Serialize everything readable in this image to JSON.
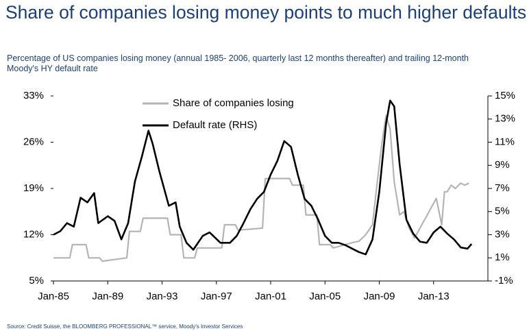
{
  "chart_data": {
    "type": "line",
    "title": "Share of companies losing money points to much higher defaults",
    "subtitle": "Percentage of US companies losing money (annual 1985- 2006, quarterly last 12 months thereafter) and trailing 12-month Moody's HY default rate",
    "source": "Source: Credit Suisse, the BLOOMBERG PROFESSIONAL™ service, Moody's Investor Services",
    "xlim": [
      1985,
      2017
    ],
    "xticks": [
      {
        "value": 1985,
        "label": "Jan-85"
      },
      {
        "value": 1989,
        "label": "Jan-89"
      },
      {
        "value": 1993,
        "label": "Jan-93"
      },
      {
        "value": 1997,
        "label": "Jan-97"
      },
      {
        "value": 2001,
        "label": "Jan-01"
      },
      {
        "value": 2005,
        "label": "Jan-05"
      },
      {
        "value": 2009,
        "label": "Jan-09"
      },
      {
        "value": 2013,
        "label": "Jan-13"
      }
    ],
    "ylim": [
      5,
      33
    ],
    "yticks": [
      {
        "value": 5,
        "label": "5%"
      },
      {
        "value": 12,
        "label": "12%"
      },
      {
        "value": 19,
        "label": "19%"
      },
      {
        "value": 26,
        "label": "26%"
      },
      {
        "value": 33,
        "label": "33%"
      }
    ],
    "y2lim": [
      -1,
      15
    ],
    "y2ticks": [
      {
        "value": -1,
        "label": "-1%"
      },
      {
        "value": 1,
        "label": "1%"
      },
      {
        "value": 3,
        "label": "3%"
      },
      {
        "value": 5,
        "label": "5%"
      },
      {
        "value": 7,
        "label": "7%"
      },
      {
        "value": 9,
        "label": "9%"
      },
      {
        "value": 11,
        "label": "11%"
      },
      {
        "value": 13,
        "label": "13%"
      },
      {
        "value": 15,
        "label": "15%"
      }
    ],
    "legend": "top",
    "series": [
      {
        "name": "Share of companies losing",
        "color": "#b4b4b4",
        "axis": "y",
        "x": [
          1985,
          1986.2,
          1986.4,
          1987.4,
          1987.6,
          1988.4,
          1988.6,
          1990.4,
          1990.6,
          1991.4,
          1991.6,
          1993.4,
          1993.6,
          1994.4,
          1994.6,
          1995.4,
          1995.6,
          1997.4,
          1997.6,
          1998.4,
          1998.6,
          2000.4,
          2000.6,
          2002.4,
          2002.6,
          2003.4,
          2003.6,
          2004.4,
          2004.6,
          2005.4,
          2005.6,
          2006.5,
          2007.0,
          2007.5,
          2008.0,
          2008.5,
          2008.8,
          2009.2,
          2009.5,
          2009.8,
          2010.1,
          2010.5,
          2010.8,
          2011.2,
          2011.6,
          2012.0,
          2012.4,
          2012.8,
          2013.2,
          2013.6,
          2013.8,
          2014.0,
          2014.3,
          2014.6,
          2015.0,
          2015.3,
          2015.6
        ],
        "values": [
          8.5,
          8.5,
          10.5,
          10.5,
          8.5,
          8.5,
          8.0,
          8.5,
          12.5,
          12.5,
          14.5,
          14.5,
          12.0,
          12.0,
          8.5,
          8.5,
          10.0,
          10.0,
          13.5,
          13.5,
          12.7,
          13.0,
          20.5,
          20.5,
          19.5,
          19.5,
          15.0,
          15.0,
          10.5,
          10.5,
          10.0,
          10.5,
          10.8,
          11.0,
          12.0,
          13.5,
          19.0,
          26.0,
          30.0,
          28.0,
          20.0,
          15.0,
          15.5,
          13.0,
          11.5,
          13.0,
          14.5,
          16.0,
          17.5,
          13.5,
          18.5,
          18.5,
          19.5,
          19.0,
          19.8,
          19.5,
          19.8
        ]
      },
      {
        "name": "Default rate (RHS)",
        "color": "#000000",
        "axis": "y2",
        "x": [
          1985.0,
          1985.5,
          1986.0,
          1986.5,
          1987.0,
          1987.5,
          1988.0,
          1988.3,
          1989.0,
          1989.5,
          1990.0,
          1990.5,
          1991.0,
          1991.5,
          1992.0,
          1992.3,
          1992.8,
          1993.5,
          1994.0,
          1994.3,
          1994.8,
          1995.3,
          1996.0,
          1996.5,
          1997.3,
          1998.0,
          1998.5,
          1999.0,
          1999.5,
          2000.0,
          2000.5,
          2001.0,
          2001.5,
          2002.0,
          2002.5,
          2003.0,
          2003.5,
          2004.0,
          2004.5,
          2005.0,
          2005.5,
          2006.0,
          2006.5,
          2007.0,
          2007.5,
          2008.0,
          2008.5,
          2009.0,
          2009.5,
          2009.8,
          2010.1,
          2010.5,
          2011.0,
          2011.5,
          2012.0,
          2012.5,
          2013.0,
          2013.5,
          2014.0,
          2014.5,
          2015.0,
          2015.5,
          2015.8
        ],
        "values": [
          3.0,
          3.3,
          4.0,
          3.7,
          6.2,
          5.8,
          6.6,
          4.0,
          4.6,
          4.2,
          2.6,
          4.0,
          7.6,
          9.7,
          12.0,
          10.9,
          8.5,
          5.5,
          5.8,
          3.7,
          2.3,
          1.7,
          2.9,
          3.2,
          2.3,
          2.3,
          2.9,
          4.0,
          5.2,
          6.1,
          6.7,
          8.2,
          9.4,
          11.1,
          10.6,
          8.2,
          6.1,
          5.5,
          4.3,
          2.9,
          2.3,
          2.3,
          2.1,
          1.8,
          1.5,
          1.3,
          2.6,
          6.7,
          12.6,
          14.6,
          14.1,
          9.1,
          4.3,
          3.1,
          2.4,
          2.3,
          3.2,
          3.7,
          3.1,
          2.6,
          1.9,
          1.8,
          2.2
        ]
      }
    ]
  }
}
